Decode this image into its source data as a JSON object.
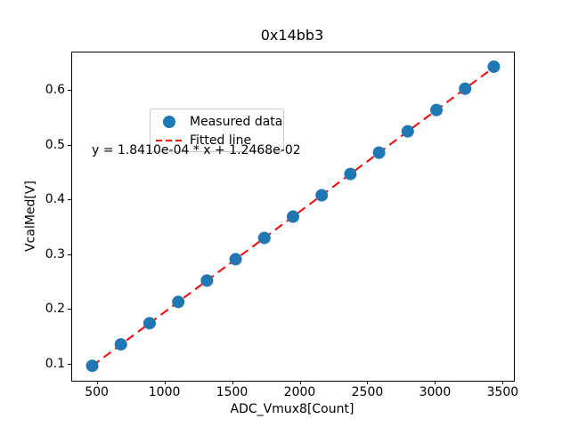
{
  "chart_data": {
    "type": "scatter",
    "title": "0x14bb3",
    "xlabel": "ADC_Vmux8[Count]",
    "ylabel": "VcalMed[V]",
    "xlim": [
      311.6,
      3576.4
    ],
    "ylim": [
      0.0699,
      0.6708
    ],
    "xticks": [
      500,
      1000,
      1500,
      2000,
      2500,
      3000,
      3500
    ],
    "yticks": [
      0.1,
      0.2,
      0.3,
      0.4,
      0.5,
      0.6
    ],
    "grid": false,
    "legend_position": "upper left",
    "series": [
      {
        "name": "Measured data",
        "kind": "scatter",
        "color": "#1f77b4",
        "marker_diameter_px": 14,
        "x": [
          460,
          672,
          884,
          1096,
          1308,
          1520,
          1732,
          1944,
          2156,
          2368,
          2580,
          2792,
          3004,
          3216,
          3428
        ],
        "y": [
          0.0972,
          0.1365,
          0.1752,
          0.2142,
          0.2533,
          0.2923,
          0.3313,
          0.3703,
          0.4094,
          0.4484,
          0.4874,
          0.5264,
          0.5655,
          0.6045,
          0.6448
        ]
      },
      {
        "name": "Fitted line",
        "kind": "line",
        "style": "dashed",
        "color": "#ff0000",
        "slope": 0.0001841,
        "intercept": 0.012468,
        "x_range": [
          460,
          3428
        ]
      }
    ],
    "annotation": "y = 1.8410e-04 * x + 1.2468e-02",
    "legend": {
      "entries": [
        "Measured data",
        "Fitted line"
      ]
    }
  }
}
